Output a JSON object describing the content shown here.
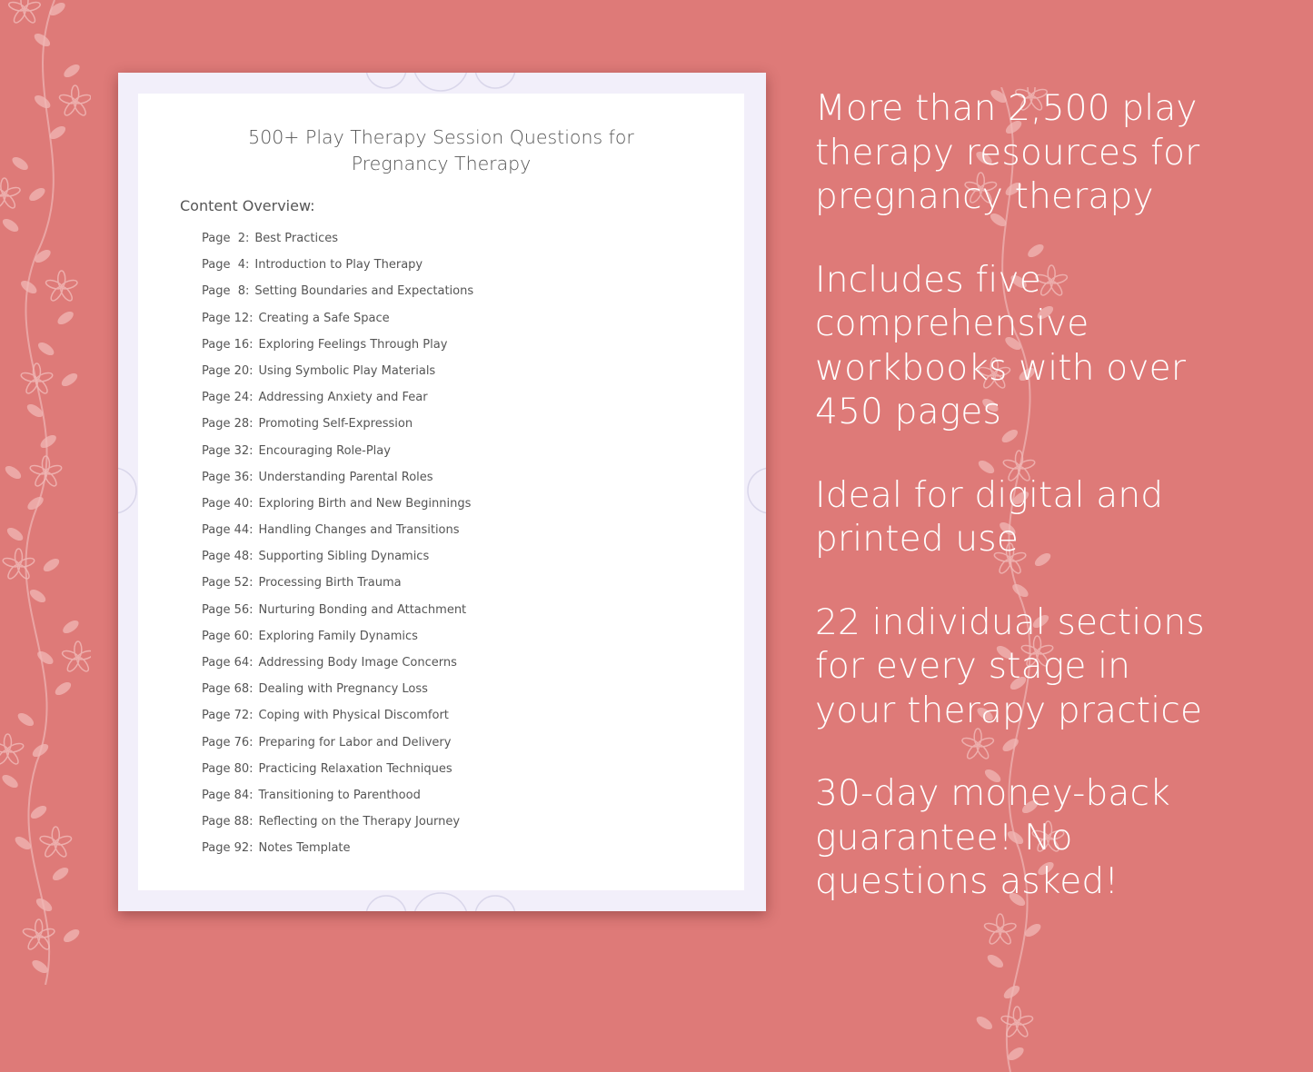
{
  "document": {
    "title_line1": "500+ Play Therapy Session Questions for",
    "title_line2": "Pregnancy Therapy",
    "overview_heading": "Content Overview:",
    "toc": [
      {
        "page": "Page  2:",
        "title": "Best Practices"
      },
      {
        "page": "Page  4:",
        "title": "Introduction to Play Therapy"
      },
      {
        "page": "Page  8:",
        "title": "Setting Boundaries and Expectations"
      },
      {
        "page": "Page 12:",
        "title": "Creating a Safe Space"
      },
      {
        "page": "Page 16:",
        "title": "Exploring Feelings Through Play"
      },
      {
        "page": "Page 20:",
        "title": "Using Symbolic Play Materials"
      },
      {
        "page": "Page 24:",
        "title": "Addressing Anxiety and Fear"
      },
      {
        "page": "Page 28:",
        "title": "Promoting Self-Expression"
      },
      {
        "page": "Page 32:",
        "title": "Encouraging Role-Play"
      },
      {
        "page": "Page 36:",
        "title": "Understanding Parental Roles"
      },
      {
        "page": "Page 40:",
        "title": "Exploring Birth and New Beginnings"
      },
      {
        "page": "Page 44:",
        "title": "Handling Changes and Transitions"
      },
      {
        "page": "Page 48:",
        "title": "Supporting Sibling Dynamics"
      },
      {
        "page": "Page 52:",
        "title": "Processing Birth Trauma"
      },
      {
        "page": "Page 56:",
        "title": "Nurturing Bonding and Attachment"
      },
      {
        "page": "Page 60:",
        "title": "Exploring Family Dynamics"
      },
      {
        "page": "Page 64:",
        "title": "Addressing Body Image Concerns"
      },
      {
        "page": "Page 68:",
        "title": "Dealing with Pregnancy Loss"
      },
      {
        "page": "Page 72:",
        "title": "Coping with Physical Discomfort"
      },
      {
        "page": "Page 76:",
        "title": "Preparing for Labor and Delivery"
      },
      {
        "page": "Page 80:",
        "title": "Practicing Relaxation Techniques"
      },
      {
        "page": "Page 84:",
        "title": "Transitioning to Parenthood"
      },
      {
        "page": "Page 88:",
        "title": "Reflecting on the Therapy Journey"
      },
      {
        "page": "Page 92:",
        "title": "Notes Template"
      }
    ]
  },
  "features": [
    "More than 2,500 play therapy resources for pregnancy therapy",
    "Includes five comprehensive workbooks with over 450 pages",
    "Ideal for digital and printed use",
    "22 individual sections for every stage in your therapy practice",
    "30-day money-back guarantee! No questions asked!"
  ],
  "colors": {
    "background": "#de7a78",
    "page_border": "#f2effa",
    "text": "#555555",
    "vine": "#f0b8b6"
  },
  "icons": [
    "floral-vine-left",
    "floral-vine-right",
    "mandala-ornament"
  ]
}
